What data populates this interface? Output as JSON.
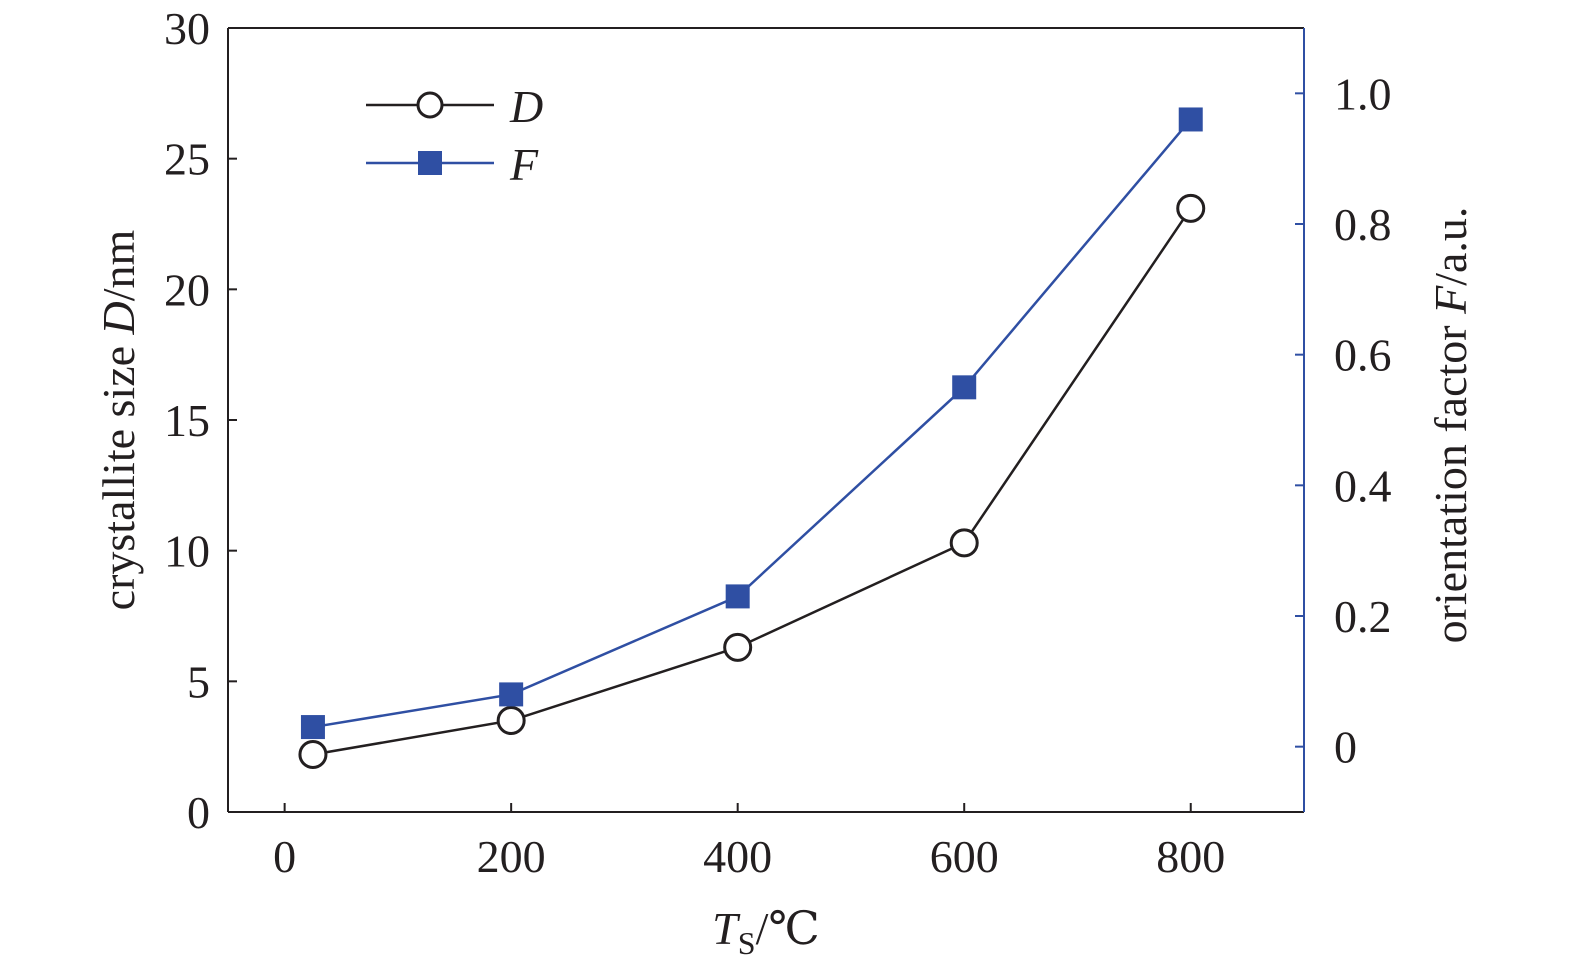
{
  "chart_data": {
    "type": "line",
    "x": [
      25,
      200,
      400,
      600,
      800
    ],
    "xlim": [
      -50,
      900
    ],
    "x_ticks": [
      "0",
      "200",
      "400",
      "600",
      "800"
    ],
    "x_tick_values": [
      0,
      200,
      400,
      600,
      800
    ],
    "xlabel": {
      "main": "T",
      "sub": "S",
      "unit": "/℃"
    },
    "left_axis": {
      "label_pre": "crystallite size ",
      "label_italic": "D",
      "label_post": "/nm",
      "ylim": [
        0,
        30
      ],
      "ticks": [
        "0",
        "5",
        "10",
        "15",
        "20",
        "25",
        "30"
      ],
      "tick_values": [
        0,
        5,
        10,
        15,
        20,
        25,
        30
      ]
    },
    "right_axis": {
      "label_pre": "orientation factor ",
      "label_italic": "F",
      "label_post": "/a.u.",
      "ylim": [
        -0.1,
        1.1
      ],
      "ticks": [
        "0",
        "0.2",
        "0.4",
        "0.6",
        "0.8",
        "1.0"
      ],
      "tick_values": [
        0,
        0.2,
        0.4,
        0.6,
        0.8,
        1.0
      ]
    },
    "series": [
      {
        "name": "D",
        "axis": "left",
        "marker": "open-circle",
        "color": "#231f20",
        "values": [
          2.2,
          3.5,
          6.3,
          10.3,
          23.1
        ]
      },
      {
        "name": "F",
        "axis": "right",
        "marker": "filled-square",
        "color": "#2f4fa3",
        "values": [
          0.03,
          0.08,
          0.23,
          0.55,
          0.96
        ]
      }
    ],
    "legend_position": "top-left",
    "grid": false,
    "colors": {
      "axis": "#231f20",
      "right_axis": "#2f4fa3"
    }
  }
}
